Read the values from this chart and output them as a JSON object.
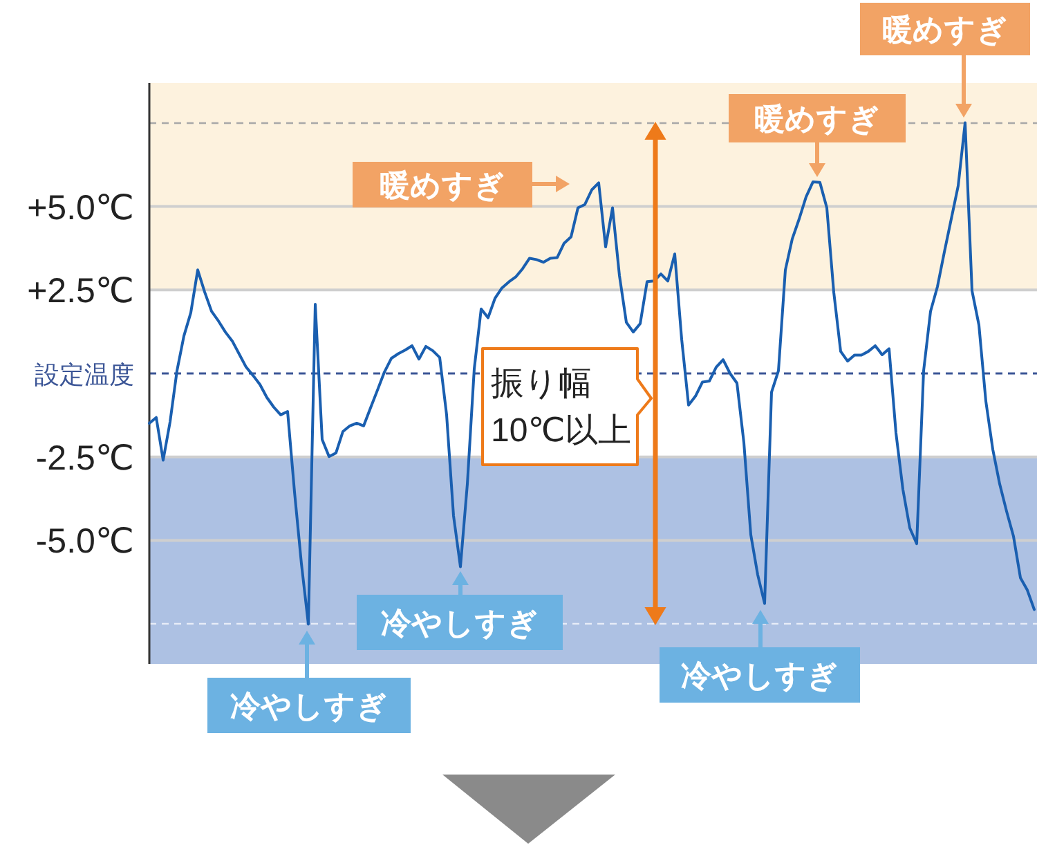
{
  "chart_data": {
    "type": "line",
    "categories": [
      null,
      null,
      null,
      null,
      null,
      null,
      null,
      null,
      null,
      null,
      null,
      null,
      null,
      null,
      null,
      null,
      null,
      null,
      null,
      null,
      null,
      null,
      null,
      null,
      null,
      null,
      null,
      null,
      null,
      null,
      null,
      null,
      null,
      null,
      null,
      null,
      null,
      null,
      null,
      null,
      null,
      null,
      null,
      null,
      null,
      null,
      null,
      null,
      null,
      null,
      null,
      null,
      null,
      null,
      null,
      null,
      null,
      null,
      null,
      null,
      null,
      null,
      null,
      null,
      null,
      null,
      null,
      null,
      null,
      null,
      null,
      null,
      null,
      null,
      null,
      null,
      null,
      null,
      null,
      null,
      null,
      null,
      null,
      null,
      null,
      null,
      null,
      null,
      null,
      null,
      null,
      null,
      null,
      null,
      null,
      null,
      null,
      null,
      null,
      null,
      null,
      null,
      null,
      null,
      null,
      null,
      null,
      null,
      null,
      null,
      null,
      null,
      null,
      null,
      null,
      null,
      null,
      null,
      null,
      null,
      null,
      null,
      null,
      null,
      null,
      null,
      null,
      null,
      null
    ],
    "series": [
      {
        "color": "#1a5fb0",
        "values": [
          -1.49,
          -1.32,
          -2.6,
          -1.45,
          0.08,
          1.12,
          1.82,
          3.1,
          2.44,
          1.86,
          1.57,
          1.24,
          0.97,
          0.58,
          0.19,
          -0.06,
          -0.33,
          -0.72,
          -1.01,
          -1.24,
          -1.14,
          -3.55,
          -5.7,
          -7.51,
          2.07,
          -1.98,
          -2.49,
          -2.38,
          -1.74,
          -1.57,
          -1.49,
          -1.57,
          -1.03,
          -0.5,
          0.04,
          0.45,
          0.59,
          0.7,
          0.83,
          0.43,
          0.81,
          0.68,
          0.48,
          -1.24,
          -4.26,
          -5.79,
          -3.31,
          0.14,
          1.93,
          1.67,
          2.25,
          2.56,
          2.74,
          2.89,
          3.14,
          3.45,
          3.41,
          3.33,
          3.45,
          3.47,
          3.9,
          4.09,
          4.96,
          5.06,
          5.5,
          5.71,
          3.79,
          4.96,
          2.93,
          1.53,
          1.24,
          1.49,
          2.75,
          2.77,
          2.98,
          2.77,
          3.58,
          1.03,
          -0.95,
          -0.68,
          -0.26,
          -0.23,
          0.19,
          0.41,
          0.0,
          -0.29,
          -2.07,
          -4.83,
          -6.03,
          -6.89,
          -0.56,
          0.08,
          3.1,
          4.03,
          4.63,
          5.29,
          5.74,
          5.72,
          4.96,
          2.44,
          0.66,
          0.37,
          0.55,
          0.55,
          0.66,
          0.83,
          0.56,
          0.74,
          -1.78,
          -3.47,
          -4.63,
          -5.1,
          0.08,
          1.86,
          2.6,
          3.64,
          4.63,
          5.62,
          7.51,
          2.48,
          1.45,
          -0.83,
          -2.27,
          -3.31,
          -4.13,
          -4.88,
          -6.12,
          -6.49,
          -7.07
        ]
      }
    ],
    "ylim": [
      -8.7,
      8.7
    ],
    "yticks": [
      {
        "value": 5,
        "label": "+5.0℃"
      },
      {
        "value": 2.5,
        "label": "+2.5℃"
      },
      {
        "value": 0,
        "label": "設定温度"
      },
      {
        "value": -2.5,
        "label": "-2.5℃"
      },
      {
        "value": -5,
        "label": "-5.0℃"
      }
    ],
    "grid": "y",
    "bands": [
      {
        "axis": "y",
        "from": 2.5,
        "to": 8.7,
        "color": "#fdf2de"
      },
      {
        "axis": "y",
        "from": -8.7,
        "to": -2.5,
        "color": "#adc1e3"
      }
    ],
    "ref_lines": [
      {
        "axis": "y",
        "value": 7.5,
        "color": "#a8a8a8",
        "line_style": "dashed"
      },
      {
        "axis": "y",
        "value": 0,
        "color": "#3b5596",
        "line_style": "dashed"
      },
      {
        "axis": "y",
        "value": -7.5,
        "color": "#e6ecf7",
        "line_style": "dashed"
      }
    ],
    "annotations": [
      "暖めすぎ",
      "暖めすぎ",
      "暖めすぎ",
      "冷やしすぎ",
      "冷やしすぎ",
      "冷やしすぎ",
      "振り幅\n10℃以上"
    ]
  }
}
